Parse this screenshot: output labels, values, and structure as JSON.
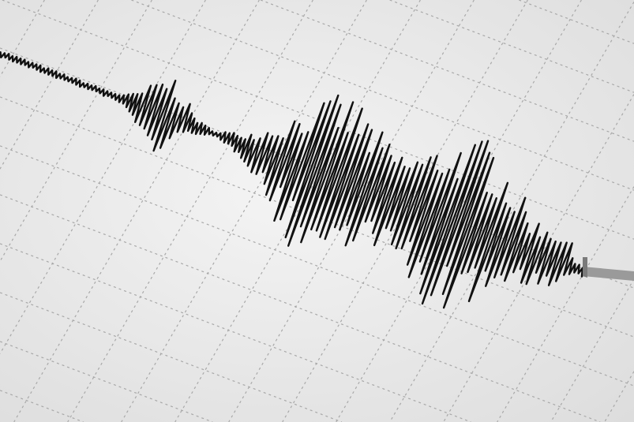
{
  "colors": {
    "paper_light": "#f4f4f4",
    "paper_dark": "#dcdcdc",
    "grid": "#a8a8a8",
    "trace": "#111111",
    "needle": "#9a9a9a"
  }
}
